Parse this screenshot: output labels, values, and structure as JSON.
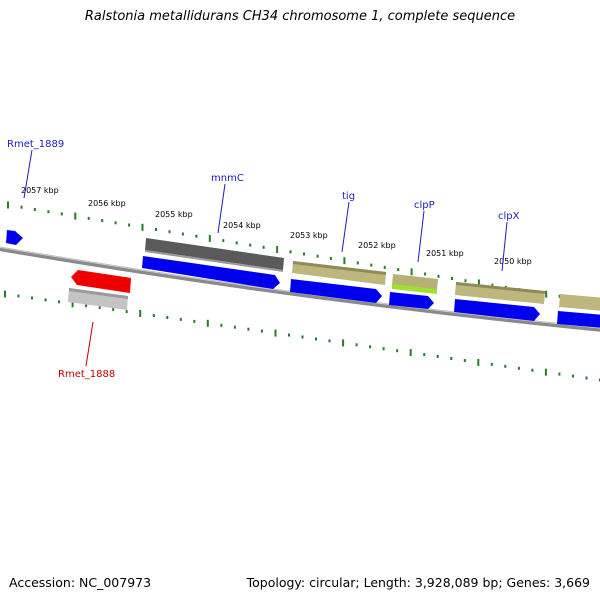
{
  "title": "Ralstonia metallidurans CH34 chromosome 1, complete sequence",
  "footer": {
    "accession": "Accession: NC_007973",
    "summary": "Topology: circular; Length: 3,928,089 bp; Genes: 3,669"
  },
  "scale_labels": [
    "2057 kbp",
    "2056 kbp",
    "2055 kbp",
    "2054 kbp",
    "2053 kbp",
    "2052 kbp",
    "2051 kbp",
    "2050 kbp"
  ],
  "genes": [
    {
      "name": "Rmet_1889",
      "color": "#1c1cbf"
    },
    {
      "name": "mnmC",
      "color": "#1c1cbf"
    },
    {
      "name": "tig",
      "color": "#1c1cbf"
    },
    {
      "name": "clpP",
      "color": "#1c1cbf"
    },
    {
      "name": "clpX",
      "color": "#1c1cbf"
    },
    {
      "name": "Rmet_1888",
      "color": "#c00000"
    }
  ],
  "colors": {
    "backbone": "#808080",
    "tick": "#2a7a2a",
    "cds": "#0000ee",
    "gene_dark": "#555555",
    "gene_khaki": "#b9b47a",
    "gene_green": "#9ee030",
    "gene_red": "#ee0000",
    "gene_grey": "#bbbbbb"
  }
}
